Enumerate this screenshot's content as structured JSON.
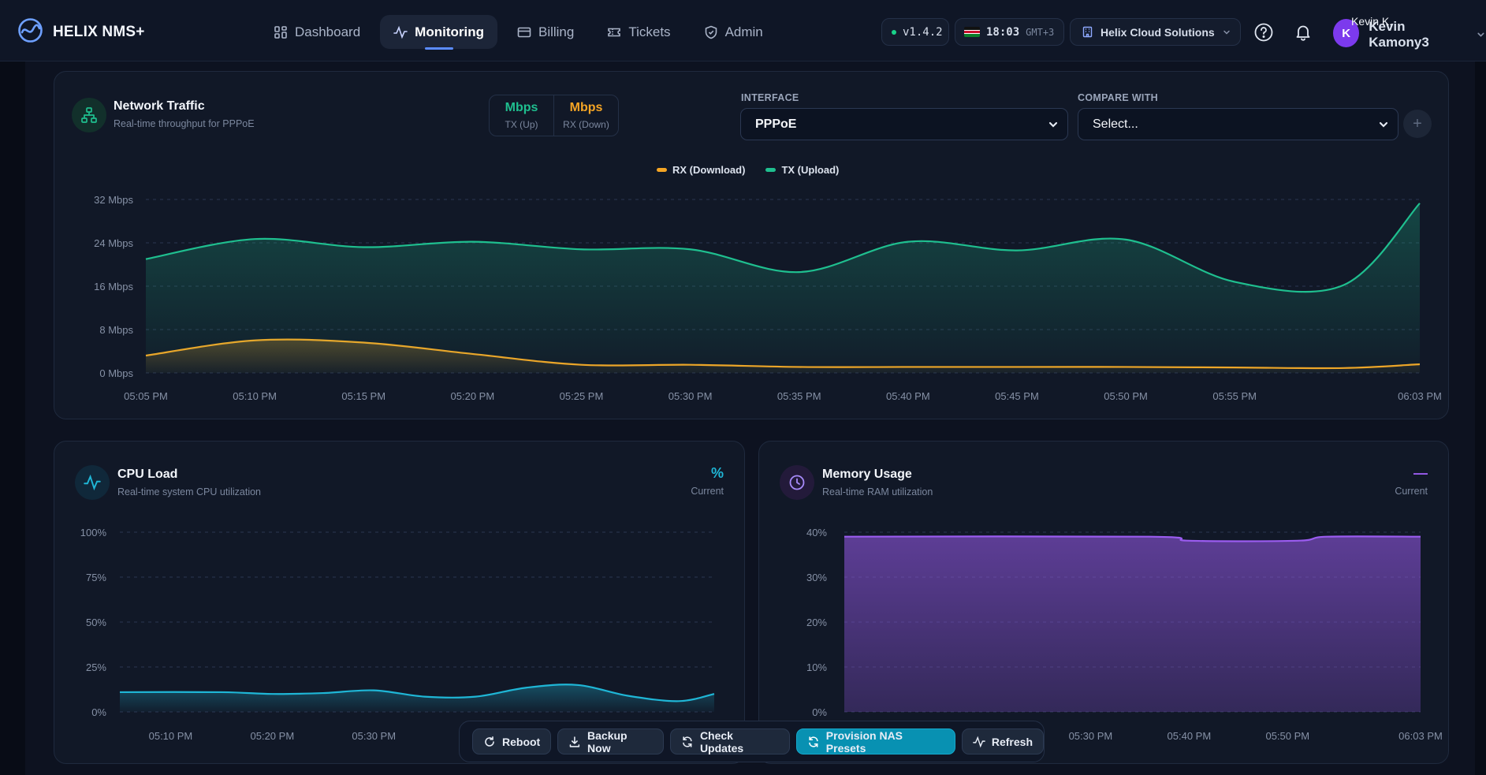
{
  "app": {
    "name": "HELIX NMS+"
  },
  "nav": [
    {
      "label": "Dashboard",
      "icon": "grid-icon",
      "active": false
    },
    {
      "label": "Monitoring",
      "icon": "activity-icon",
      "active": true
    },
    {
      "label": "Billing",
      "icon": "card-icon",
      "active": false
    },
    {
      "label": "Tickets",
      "icon": "ticket-icon",
      "active": false
    },
    {
      "label": "Admin",
      "icon": "shield-icon",
      "active": false
    }
  ],
  "header": {
    "version": "v1.4.2",
    "time": "18:03",
    "timezone": "GMT+3",
    "organization": "Helix Cloud Solutions",
    "user_initial": "K",
    "user_short": "Kevin K.",
    "user_full": "Kevin Kamony3"
  },
  "network": {
    "title": "Network Traffic",
    "subtitle": "Real-time throughput for PPPoE",
    "tx_unit": "Mbps",
    "tx_label": "TX (Up)",
    "rx_unit": "Mbps",
    "rx_label": "RX (Down)",
    "interface_label": "INTERFACE",
    "interface_value": "PPPoE",
    "compare_label": "COMPARE WITH",
    "compare_value": "Select...",
    "add_label": "+"
  },
  "cpu": {
    "title": "CPU Load",
    "subtitle": "Real-time system CPU utilization",
    "current_value": "%",
    "current_label": "Current"
  },
  "memory": {
    "title": "Memory Usage",
    "subtitle": "Real-time RAM utilization",
    "current_value": "—",
    "current_label": "Current"
  },
  "actions": [
    {
      "label": "Reboot",
      "icon": "rotate-icon",
      "primary": false
    },
    {
      "label": "Backup Now",
      "icon": "download-icon",
      "primary": false
    },
    {
      "label": "Check Updates",
      "icon": "refresh-icon",
      "primary": false
    },
    {
      "label": "Provision NAS Presets",
      "icon": "refresh-icon",
      "primary": true
    },
    {
      "label": "Refresh",
      "icon": "activity-icon",
      "primary": false
    }
  ],
  "colors": {
    "tx": "#1fbf8f",
    "rx": "#f5a524",
    "cpu": "#1fb6d6",
    "memory": "#9b5cf0",
    "accent": "#5b8cff"
  },
  "chart_data": [
    {
      "type": "area",
      "title": "Network Traffic",
      "x": [
        "05:05 PM",
        "05:10 PM",
        "05:15 PM",
        "05:20 PM",
        "05:25 PM",
        "05:30 PM",
        "05:35 PM",
        "05:40 PM",
        "05:45 PM",
        "05:50 PM",
        "05:55 PM",
        "06:03 PM"
      ],
      "x_min_minutes": 0,
      "x_values_minutes": [
        0,
        5,
        10,
        15,
        20,
        25,
        30,
        35,
        40,
        45,
        50,
        58.5
      ],
      "y_ticks": [
        "0 Mbps",
        "8 Mbps",
        "16 Mbps",
        "24 Mbps",
        "32 Mbps"
      ],
      "ylim": [
        0,
        32
      ],
      "series": [
        {
          "name": "RX (Download)",
          "points": [
            [
              0,
              3.2
            ],
            [
              5,
              6
            ],
            [
              10,
              5.6
            ],
            [
              15,
              3.5
            ],
            [
              20,
              1.5
            ],
            [
              25,
              1.5
            ],
            [
              30,
              1.1
            ],
            [
              35,
              1.1
            ],
            [
              40,
              1.1
            ],
            [
              45,
              1.1
            ],
            [
              50,
              1.0
            ],
            [
              55,
              0.9
            ],
            [
              58.5,
              1.6
            ]
          ]
        },
        {
          "name": "TX (Upload)",
          "points": [
            [
              0,
              21
            ],
            [
              5,
              24.7
            ],
            [
              10,
              23.2
            ],
            [
              15,
              24.2
            ],
            [
              20,
              22.8
            ],
            [
              25,
              22.8
            ],
            [
              30,
              18.6
            ],
            [
              35,
              24.2
            ],
            [
              40,
              22.6
            ],
            [
              45,
              24.6
            ],
            [
              50,
              16.8
            ],
            [
              55,
              16.2
            ],
            [
              58.5,
              31.3
            ]
          ]
        }
      ],
      "legend": "top-center",
      "grid": true
    },
    {
      "type": "area",
      "title": "CPU Load",
      "x": [
        "05:10 PM",
        "05:20 PM",
        "05:30 PM"
      ],
      "x_values_minutes": [
        5,
        15,
        25
      ],
      "x_min_minutes": 0,
      "x_max_minutes": 58.5,
      "y_ticks": [
        "0%",
        "25%",
        "50%",
        "75%",
        "100%"
      ],
      "ylim": [
        0,
        100
      ],
      "series": [
        {
          "name": "CPU",
          "points": [
            [
              0,
              11
            ],
            [
              10,
              11
            ],
            [
              15,
              10
            ],
            [
              20,
              10.5
            ],
            [
              25,
              12
            ],
            [
              30,
              8.5
            ],
            [
              35,
              8.5
            ],
            [
              40,
              13.5
            ],
            [
              45,
              15
            ],
            [
              50,
              9
            ],
            [
              55,
              6
            ],
            [
              58.5,
              10
            ]
          ]
        }
      ],
      "grid": true
    },
    {
      "type": "area",
      "title": "Memory Usage",
      "x": [
        "05:30 PM",
        "05:40 PM",
        "05:50 PM",
        "06:03 PM"
      ],
      "x_values_minutes": [
        25,
        35,
        45,
        58.5
      ],
      "x_min_minutes": 0,
      "x_max_minutes": 58.5,
      "y_ticks": [
        "0%",
        "10%",
        "20%",
        "30%",
        "40%"
      ],
      "ylim": [
        0,
        40
      ],
      "series": [
        {
          "name": "Memory",
          "points": [
            [
              0,
              39
            ],
            [
              31,
              39
            ],
            [
              35,
              38.1
            ],
            [
              46,
              38.1
            ],
            [
              49,
              39
            ],
            [
              58.5,
              39
            ]
          ]
        }
      ],
      "grid": true
    }
  ]
}
